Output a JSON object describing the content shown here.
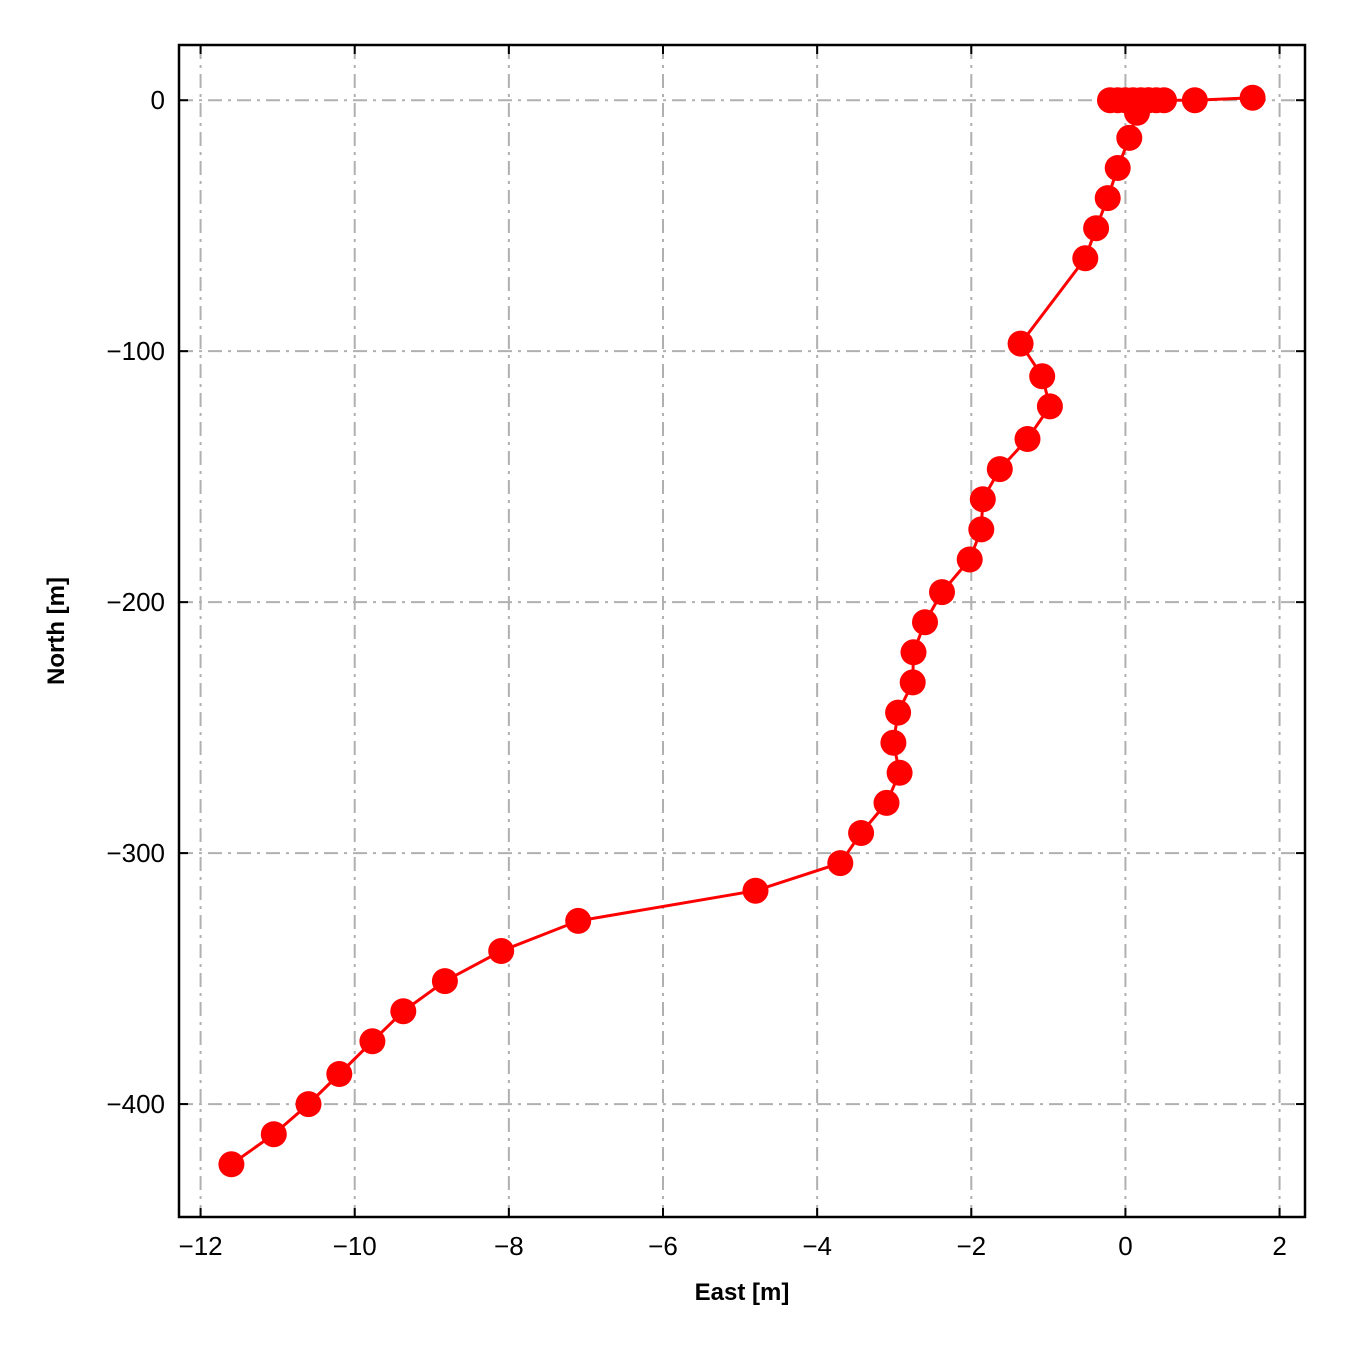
{
  "chart_data": {
    "type": "line",
    "xlabel": "East [m]",
    "ylabel": "North [m]",
    "xlim": [
      -12.28,
      2.33
    ],
    "ylim": [
      -445,
      22
    ],
    "grid": true,
    "x_ticks": [
      -12,
      -10,
      -8,
      -6,
      -4,
      -2,
      0,
      2
    ],
    "y_ticks": [
      0,
      -100,
      -200,
      -300,
      -400
    ],
    "x_tick_labels": [
      "−12",
      "−10",
      "−8",
      "−6",
      "−4",
      "−2",
      "0",
      "2"
    ],
    "y_tick_labels": [
      "0",
      "−100",
      "−200",
      "−300",
      "−400"
    ],
    "colors": {
      "series": "#ff0000",
      "grid": "#b0b0b0"
    },
    "series": [
      {
        "marker": "circle",
        "points": [
          [
            1.65,
            1
          ],
          [
            0.9,
            0
          ],
          [
            0.5,
            0
          ],
          [
            0.4,
            0
          ],
          [
            0.3,
            0
          ],
          [
            0.2,
            0
          ],
          [
            0.1,
            0
          ],
          [
            0,
            0
          ],
          [
            -0.1,
            0
          ],
          [
            -0.2,
            0
          ],
          [
            0.3,
            0
          ],
          [
            0.15,
            -5
          ],
          [
            0.05,
            -15
          ],
          [
            -0.1,
            -27
          ],
          [
            -0.23,
            -39
          ],
          [
            -0.38,
            -51
          ],
          [
            -0.52,
            -63
          ],
          [
            -1.36,
            -97
          ],
          [
            -1.08,
            -110
          ],
          [
            -0.98,
            -122
          ],
          [
            -1.27,
            -135
          ],
          [
            -1.63,
            -147
          ],
          [
            -1.85,
            -159
          ],
          [
            -1.87,
            -171
          ],
          [
            -2.02,
            -183
          ],
          [
            -2.38,
            -196
          ],
          [
            -2.6,
            -208
          ],
          [
            -2.75,
            -220
          ],
          [
            -2.76,
            -232
          ],
          [
            -2.95,
            -244
          ],
          [
            -3.01,
            -256
          ],
          [
            -2.93,
            -268
          ],
          [
            -3.1,
            -280
          ],
          [
            -3.43,
            -292
          ],
          [
            -3.7,
            -304
          ],
          [
            -4.8,
            -315
          ],
          [
            -7.1,
            -327
          ],
          [
            -8.1,
            -339
          ],
          [
            -8.83,
            -351
          ],
          [
            -9.37,
            -363
          ],
          [
            -9.77,
            -375
          ],
          [
            -10.2,
            -388
          ],
          [
            -10.6,
            -400
          ],
          [
            -11.05,
            -412
          ],
          [
            -11.6,
            -424
          ]
        ]
      }
    ]
  }
}
